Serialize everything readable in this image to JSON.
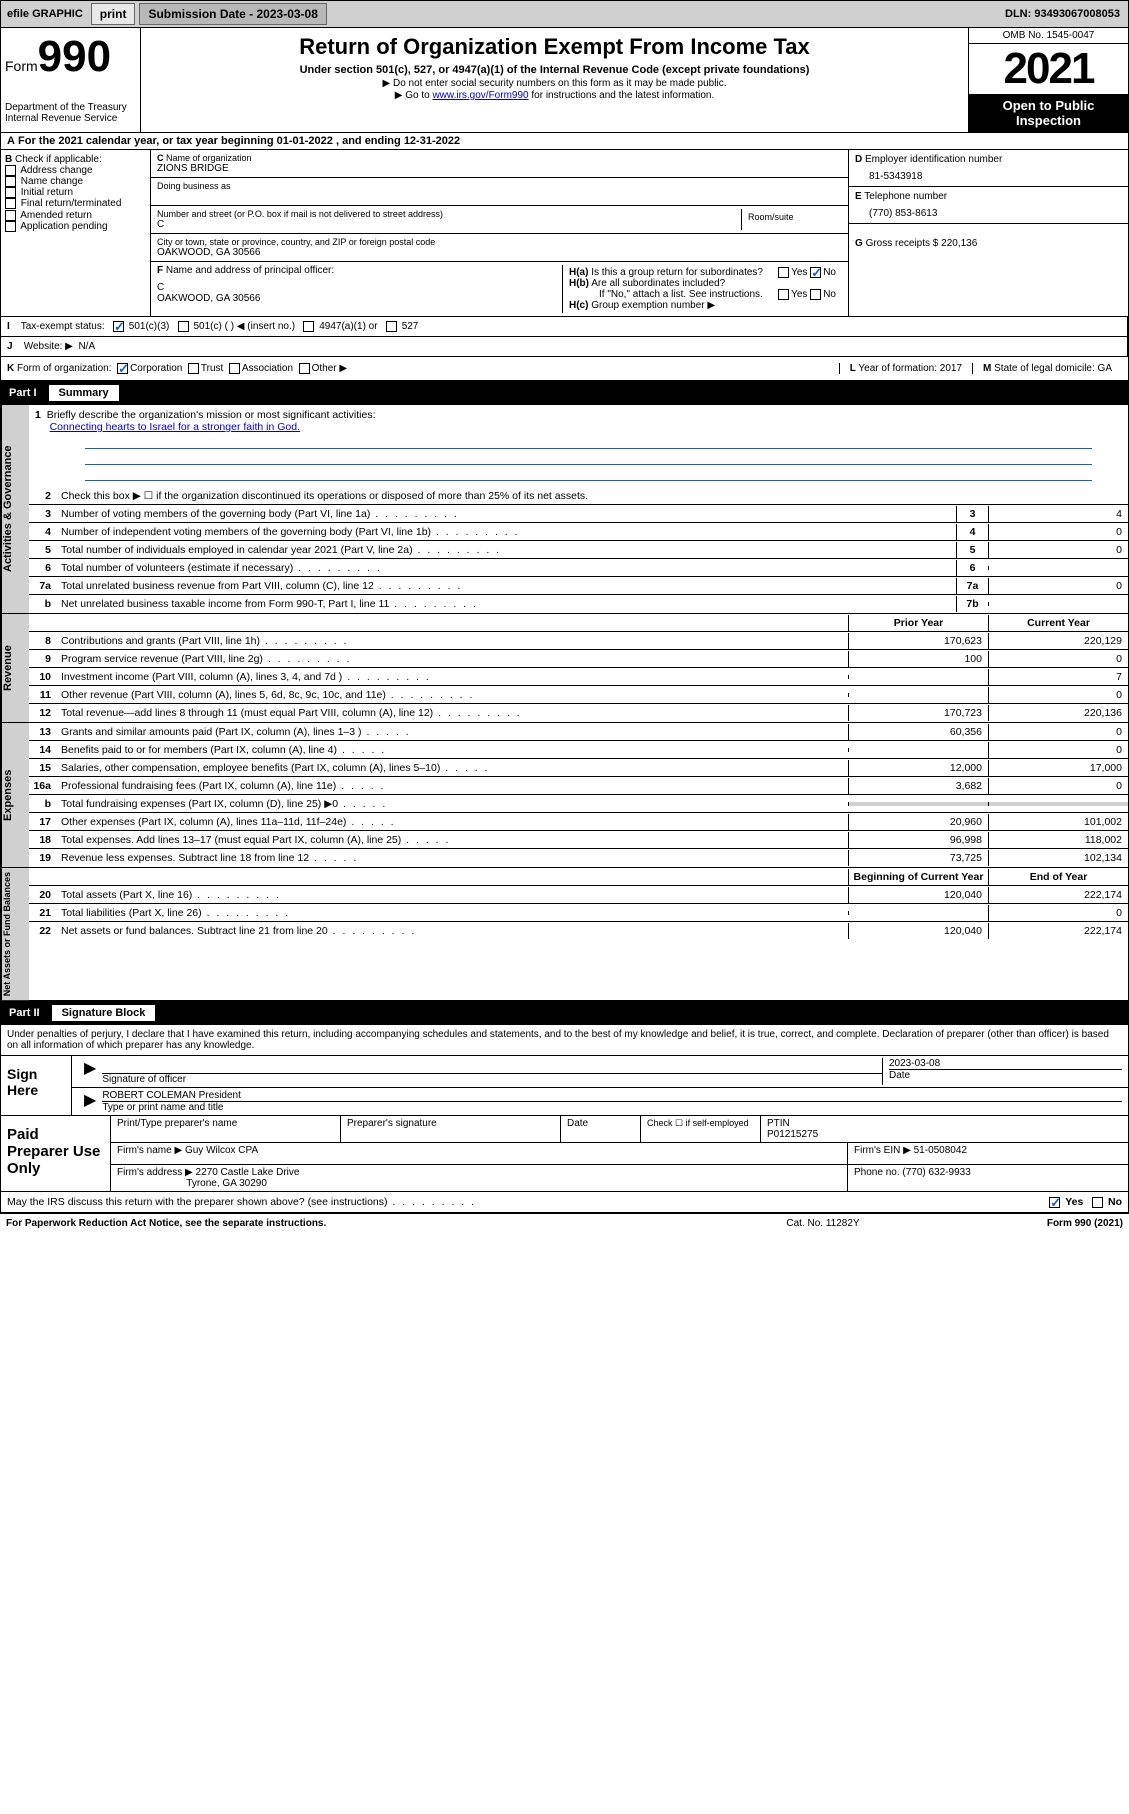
{
  "topbar": {
    "efile": "efile GRAPHIC",
    "print": "print",
    "subdate_label": "Submission Date -",
    "subdate": "2023-03-08",
    "dln_label": "DLN:",
    "dln": "93493067008053"
  },
  "header": {
    "form_prefix": "Form",
    "form_number": "990",
    "dept": "Department of the Treasury",
    "irs": "Internal Revenue Service",
    "title": "Return of Organization Exempt From Income Tax",
    "sub1": "Under section 501(c), 527, or 4947(a)(1) of the Internal Revenue Code (except private foundations)",
    "sub2": "▶ Do not enter social security numbers on this form as it may be made public.",
    "sub3a": "▶ Go to ",
    "sub3_link": "www.irs.gov/Form990",
    "sub3b": " for instructions and the latest information.",
    "omb": "OMB No. 1545-0047",
    "year": "2021",
    "open": "Open to Public Inspection"
  },
  "sectionA": {
    "text_a": "For the 2021 calendar year, or tax year beginning ",
    "begin": "01-01-2022",
    "text_b": " , and ending ",
    "end": "12-31-2022"
  },
  "colB": {
    "label": "Check if applicable:",
    "items": [
      "Address change",
      "Name change",
      "Initial return",
      "Final return/terminated",
      "Amended return",
      "Application pending"
    ]
  },
  "colC": {
    "name_label": "Name of organization",
    "name": "ZIONS BRIDGE",
    "dba_label": "Doing business as",
    "addr_label": "Number and street (or P.O. box if mail is not delivered to street address)",
    "room_label": "Room/suite",
    "addr": "C",
    "city_label": "City or town, state or province, country, and ZIP or foreign postal code",
    "city": "OAKWOOD, GA  30566",
    "officer_label": "Name and address of principal officer:",
    "officer_name": "C",
    "officer_city": "OAKWOOD, GA  30566"
  },
  "colD": {
    "ein_label": "Employer identification number",
    "ein": "81-5343918",
    "tel_label": "Telephone number",
    "tel": "(770) 853-8613",
    "gross_label": "Gross receipts $",
    "gross": "220,136"
  },
  "rowH": {
    "ha": "Is this a group return for subordinates?",
    "hb": "Are all subordinates included?",
    "hb_note": "If \"No,\" attach a list. See instructions.",
    "hc": "Group exemption number ▶",
    "yes": "Yes",
    "no": "No"
  },
  "rowI": {
    "label": "Tax-exempt status:",
    "opts": [
      "501(c)(3)",
      "501(c) (  ) ◀ (insert no.)",
      "4947(a)(1) or",
      "527"
    ]
  },
  "rowJ": {
    "label": "Website: ▶",
    "val": "N/A"
  },
  "rowK": {
    "label": "Form of organization:",
    "opts": [
      "Corporation",
      "Trust",
      "Association",
      "Other ▶"
    ],
    "year_label": "Year of formation:",
    "year": "2017",
    "state_label": "State of legal domicile:",
    "state": "GA"
  },
  "part1": {
    "num": "Part I",
    "title": "Summary"
  },
  "vtabs": [
    "Activities & Governance",
    "Revenue",
    "Expenses",
    "Net Assets or Fund Balances"
  ],
  "mission": {
    "label": "Briefly describe the organization's mission or most significant activities:",
    "text": "Connecting hearts to Israel for a stronger faith in God."
  },
  "gov_lines": [
    {
      "n": "2",
      "d": "Check this box ▶ ☐  if the organization discontinued its operations or disposed of more than 25% of its net assets."
    },
    {
      "n": "3",
      "d": "Number of voting members of the governing body (Part VI, line 1a)",
      "box": "3",
      "v": "4"
    },
    {
      "n": "4",
      "d": "Number of independent voting members of the governing body (Part VI, line 1b)",
      "box": "4",
      "v": "0"
    },
    {
      "n": "5",
      "d": "Total number of individuals employed in calendar year 2021 (Part V, line 2a)",
      "box": "5",
      "v": "0"
    },
    {
      "n": "6",
      "d": "Total number of volunteers (estimate if necessary)",
      "box": "6",
      "v": ""
    },
    {
      "n": "7a",
      "d": "Total unrelated business revenue from Part VIII, column (C), line 12",
      "box": "7a",
      "v": "0"
    },
    {
      "n": "b",
      "d": "Net unrelated business taxable income from Form 990-T, Part I, line 11",
      "box": "7b",
      "v": ""
    }
  ],
  "col_headers": {
    "prior": "Prior Year",
    "current": "Current Year"
  },
  "rev_lines": [
    {
      "n": "8",
      "d": "Contributions and grants (Part VIII, line 1h)",
      "p": "170,623",
      "c": "220,129"
    },
    {
      "n": "9",
      "d": "Program service revenue (Part VIII, line 2g)",
      "p": "100",
      "c": "0"
    },
    {
      "n": "10",
      "d": "Investment income (Part VIII, column (A), lines 3, 4, and 7d )",
      "p": "",
      "c": "7"
    },
    {
      "n": "11",
      "d": "Other revenue (Part VIII, column (A), lines 5, 6d, 8c, 9c, 10c, and 11e)",
      "p": "",
      "c": "0"
    },
    {
      "n": "12",
      "d": "Total revenue—add lines 8 through 11 (must equal Part VIII, column (A), line 12)",
      "p": "170,723",
      "c": "220,136"
    }
  ],
  "exp_lines": [
    {
      "n": "13",
      "d": "Grants and similar amounts paid (Part IX, column (A), lines 1–3 )",
      "p": "60,356",
      "c": "0"
    },
    {
      "n": "14",
      "d": "Benefits paid to or for members (Part IX, column (A), line 4)",
      "p": "",
      "c": "0"
    },
    {
      "n": "15",
      "d": "Salaries, other compensation, employee benefits (Part IX, column (A), lines 5–10)",
      "p": "12,000",
      "c": "17,000"
    },
    {
      "n": "16a",
      "d": "Professional fundraising fees (Part IX, column (A), line 11e)",
      "p": "3,682",
      "c": "0"
    },
    {
      "n": "b",
      "d": "Total fundraising expenses (Part IX, column (D), line 25) ▶0",
      "p": "SHADE",
      "c": "SHADE"
    },
    {
      "n": "17",
      "d": "Other expenses (Part IX, column (A), lines 11a–11d, 11f–24e)",
      "p": "20,960",
      "c": "101,002"
    },
    {
      "n": "18",
      "d": "Total expenses. Add lines 13–17 (must equal Part IX, column (A), line 25)",
      "p": "96,998",
      "c": "118,002"
    },
    {
      "n": "19",
      "d": "Revenue less expenses. Subtract line 18 from line 12",
      "p": "73,725",
      "c": "102,134"
    }
  ],
  "net_headers": {
    "begin": "Beginning of Current Year",
    "end": "End of Year"
  },
  "net_lines": [
    {
      "n": "20",
      "d": "Total assets (Part X, line 16)",
      "p": "120,040",
      "c": "222,174"
    },
    {
      "n": "21",
      "d": "Total liabilities (Part X, line 26)",
      "p": "",
      "c": "0"
    },
    {
      "n": "22",
      "d": "Net assets or fund balances. Subtract line 21 from line 20",
      "p": "120,040",
      "c": "222,174"
    }
  ],
  "part2": {
    "num": "Part II",
    "title": "Signature Block"
  },
  "sig": {
    "decl": "Under penalties of perjury, I declare that I have examined this return, including accompanying schedules and statements, and to the best of my knowledge and belief, it is true, correct, and complete. Declaration of preparer (other than officer) is based on all information of which preparer has any knowledge.",
    "sign_here": "Sign Here",
    "sig_officer": "Signature of officer",
    "date_label": "Date",
    "date": "2023-03-08",
    "name": "ROBERT COLEMAN  President",
    "name_label": "Type or print name and title"
  },
  "prep": {
    "label": "Paid Preparer Use Only",
    "h1": "Print/Type preparer's name",
    "h2": "Preparer's signature",
    "h3": "Date",
    "h4_check": "Check ☐ if self-employed",
    "h5": "PTIN",
    "ptin": "P01215275",
    "firm_label": "Firm's name  ▶",
    "firm": "Guy Wilcox CPA",
    "ein_label": "Firm's EIN ▶",
    "ein": "51-0508042",
    "addr_label": "Firm's address ▶",
    "addr1": "2270 Castle Lake Drive",
    "addr2": "Tyrone, GA  30290",
    "phone_label": "Phone no.",
    "phone": "(770) 632-9933"
  },
  "may_irs": {
    "q": "May the IRS discuss this return with the preparer shown above? (see instructions)",
    "yes": "Yes",
    "no": "No"
  },
  "footer": {
    "left": "For Paperwork Reduction Act Notice, see the separate instructions.",
    "mid": "Cat. No. 11282Y",
    "right": "Form 990 (2021)"
  },
  "colors": {
    "link": "#0000cc",
    "check": "#1a5fb4",
    "shade": "#d0d0d0"
  }
}
